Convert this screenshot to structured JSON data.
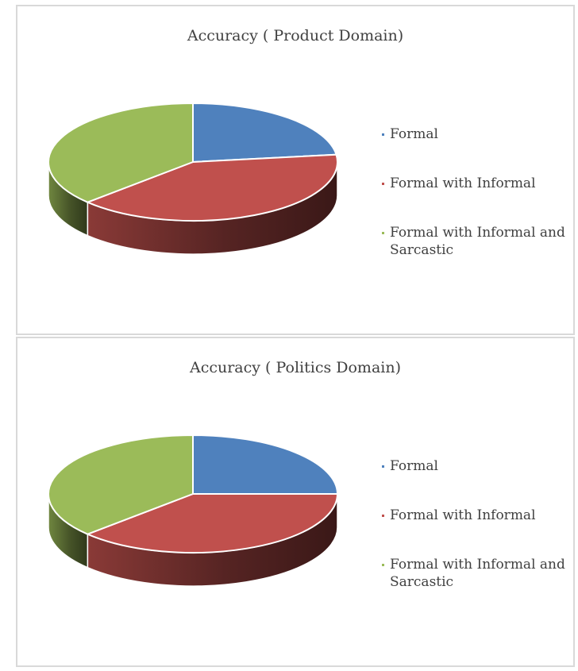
{
  "chart_data": [
    {
      "type": "pie",
      "title": "Accuracy ( Product Domain)",
      "categories": [
        "Formal",
        "Formal with Informal",
        "Formal with Informal and Sarcastic"
      ],
      "values": [
        23,
        40,
        37
      ],
      "colors": [
        "#4f81bd",
        "#c0504d",
        "#9bbb59"
      ],
      "style": "3d",
      "legend_position": "right"
    },
    {
      "type": "pie",
      "title": "Accuracy ( Politics Domain)",
      "categories": [
        "Formal",
        "Formal with Informal",
        "Formal with Informal and Sarcastic"
      ],
      "values": [
        25,
        38,
        37
      ],
      "colors": [
        "#4f81bd",
        "#c0504d",
        "#9bbb59"
      ],
      "style": "3d",
      "legend_position": "right"
    }
  ]
}
